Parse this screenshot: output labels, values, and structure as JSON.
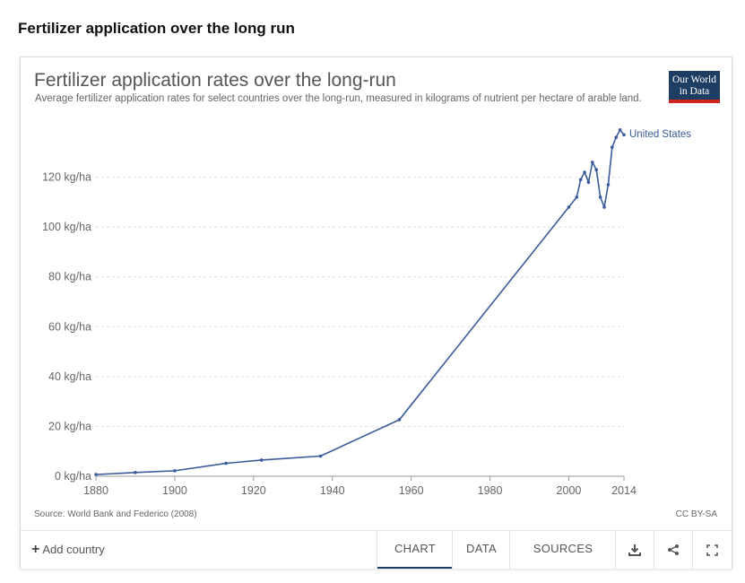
{
  "page": {
    "heading": "Fertilizer application over the long run"
  },
  "card": {
    "title": "Fertilizer application rates over the long-run",
    "subtitle": "Average fertilizer application rates for select countries over the long-run, measured in kilograms of nutrient per hectare of arable land.",
    "logo_line1": "Our World",
    "logo_line2": "in Data",
    "source": "Source: World Bank and Federico (2008)",
    "license": "CC BY-SA"
  },
  "footer": {
    "add_country_label": "Add country",
    "tabs": [
      "CHART",
      "DATA",
      "SOURCES"
    ],
    "active_tab": "CHART",
    "icons": [
      "download-icon",
      "share-icon",
      "fullscreen-icon"
    ]
  },
  "colors": {
    "series": "#3a5b9b",
    "grid": "#dddddd",
    "logo_bg": "#1d3d63",
    "logo_bar": "#ce261e"
  },
  "chart_data": {
    "type": "line",
    "title": "Fertilizer application rates over the long-run",
    "xlabel": "",
    "ylabel": "",
    "xlim": [
      1880,
      2014
    ],
    "ylim": [
      0,
      140
    ],
    "x_ticks": [
      "1880",
      "1900",
      "1920",
      "1940",
      "1960",
      "1980",
      "2000",
      "2014"
    ],
    "x_tick_values": [
      1880,
      1900,
      1920,
      1940,
      1960,
      1980,
      2000,
      2014
    ],
    "y_ticks": [
      "0 kg/ha",
      "20 kg/ha",
      "40 kg/ha",
      "60 kg/ha",
      "80 kg/ha",
      "100 kg/ha",
      "120 kg/ha"
    ],
    "y_tick_values": [
      0,
      20,
      40,
      60,
      80,
      100,
      120
    ],
    "grid": true,
    "series": [
      {
        "name": "United States",
        "x": [
          1880,
          1890,
          1900,
          1913,
          1922,
          1937,
          1957,
          2000,
          2002,
          2003,
          2004,
          2005,
          2006,
          2007,
          2008,
          2009,
          2010,
          2011,
          2012,
          2013,
          2014
        ],
        "y": [
          0.7,
          1.5,
          2.2,
          5.2,
          6.5,
          8.1,
          22.7,
          108,
          112,
          119,
          122,
          118,
          126,
          123,
          112,
          108,
          117,
          132,
          136,
          139,
          137
        ]
      }
    ]
  }
}
